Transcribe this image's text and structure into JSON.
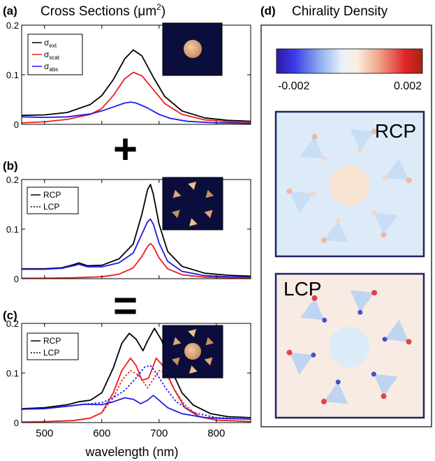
{
  "labels": {
    "panel_a": "(a)",
    "panel_b": "(b)",
    "panel_c": "(c)",
    "panel_d": "(d)",
    "cross_sections_title": "Cross Sections (μm",
    "cross_sections_sup": "2",
    "cross_sections_close": ")",
    "chirality_title": "Chirality Density",
    "plus_sign": "+",
    "equals_sign": "=",
    "xlabel": "wavelength (nm)",
    "rcp_map_label": "RCP",
    "lcp_map_label": "LCP",
    "colorbar_min": "-0.002",
    "colorbar_max": "0.002"
  },
  "colors": {
    "ext": "#000000",
    "scat": "#ee1c1c",
    "abs": "#1a1ae6",
    "inset_bg": "#0b0e3c",
    "particle": "#e8b38a",
    "rcp_bg": "#ddebf8",
    "lcp_bg": "#f7ebe4"
  },
  "chart_data": [
    {
      "panel": "(a)",
      "type": "line",
      "xlim": [
        460,
        860
      ],
      "ylim": [
        0,
        0.2
      ],
      "yticks": [
        "0",
        "0.1",
        "0.2"
      ],
      "legend": [
        "σext",
        "σscat",
        "σabs"
      ],
      "legend_position": "top-left",
      "series": [
        {
          "name": "σext",
          "color": "ext",
          "x": [
            460,
            500,
            540,
            580,
            600,
            620,
            640,
            655,
            670,
            690,
            710,
            740,
            780,
            820,
            860
          ],
          "y": [
            0.018,
            0.019,
            0.024,
            0.04,
            0.058,
            0.09,
            0.132,
            0.15,
            0.138,
            0.095,
            0.056,
            0.027,
            0.013,
            0.008,
            0.006
          ]
        },
        {
          "name": "σscat",
          "color": "scat",
          "x": [
            460,
            500,
            540,
            580,
            600,
            620,
            640,
            655,
            670,
            690,
            710,
            740,
            780,
            820,
            860
          ],
          "y": [
            0.003,
            0.005,
            0.01,
            0.02,
            0.032,
            0.058,
            0.092,
            0.105,
            0.098,
            0.07,
            0.042,
            0.02,
            0.009,
            0.005,
            0.003
          ]
        },
        {
          "name": "σabs",
          "color": "abs",
          "x": [
            460,
            500,
            540,
            580,
            600,
            620,
            640,
            650,
            660,
            680,
            700,
            720,
            750,
            800,
            860
          ],
          "y": [
            0.015,
            0.014,
            0.015,
            0.021,
            0.027,
            0.035,
            0.043,
            0.045,
            0.043,
            0.033,
            0.02,
            0.012,
            0.006,
            0.003,
            0.002
          ]
        }
      ]
    },
    {
      "panel": "(b)",
      "type": "line",
      "xlim": [
        460,
        860
      ],
      "ylim": [
        0,
        0.2
      ],
      "yticks": [
        "0",
        "0.1",
        "0.2"
      ],
      "legend": [
        "RCP",
        "LCP"
      ],
      "legend_position": "top-left",
      "series": [
        {
          "name": "ext",
          "color": "ext",
          "x": [
            460,
            500,
            530,
            550,
            560,
            575,
            600,
            630,
            655,
            670,
            680,
            685,
            690,
            700,
            715,
            740,
            780,
            820,
            860
          ],
          "y": [
            0.02,
            0.02,
            0.022,
            0.028,
            0.032,
            0.026,
            0.027,
            0.04,
            0.07,
            0.13,
            0.18,
            0.19,
            0.17,
            0.11,
            0.055,
            0.025,
            0.011,
            0.007,
            0.005
          ]
        },
        {
          "name": "abs",
          "color": "abs",
          "x": [
            460,
            500,
            530,
            550,
            560,
            575,
            600,
            630,
            655,
            670,
            680,
            685,
            690,
            700,
            715,
            740,
            780,
            820,
            860
          ],
          "y": [
            0.019,
            0.019,
            0.021,
            0.026,
            0.029,
            0.024,
            0.024,
            0.032,
            0.052,
            0.09,
            0.115,
            0.12,
            0.11,
            0.072,
            0.035,
            0.015,
            0.006,
            0.004,
            0.003
          ]
        },
        {
          "name": "scat",
          "color": "scat",
          "x": [
            460,
            500,
            550,
            600,
            630,
            655,
            670,
            680,
            685,
            690,
            700,
            715,
            740,
            780,
            860
          ],
          "y": [
            0.001,
            0.001,
            0.002,
            0.004,
            0.009,
            0.022,
            0.045,
            0.065,
            0.071,
            0.065,
            0.042,
            0.02,
            0.008,
            0.003,
            0.001
          ]
        }
      ]
    },
    {
      "panel": "(c)",
      "type": "line",
      "xlim": [
        460,
        860
      ],
      "ylim": [
        0,
        0.2
      ],
      "yticks": [
        "0",
        "0.1",
        "0.2"
      ],
      "legend": [
        "RCP",
        "LCP"
      ],
      "legend_position": "top-left",
      "series": [
        {
          "name": "ext",
          "color": "ext",
          "dash": false,
          "x": [
            460,
            500,
            540,
            560,
            580,
            600,
            620,
            635,
            648,
            660,
            672,
            680,
            692,
            705,
            720,
            740,
            760,
            790,
            820,
            860
          ],
          "y": [
            0.028,
            0.03,
            0.036,
            0.042,
            0.045,
            0.06,
            0.11,
            0.16,
            0.18,
            0.168,
            0.145,
            0.165,
            0.19,
            0.165,
            0.11,
            0.06,
            0.035,
            0.018,
            0.012,
            0.01
          ]
        },
        {
          "name": "scat",
          "color": "scat",
          "dash": false,
          "x": [
            460,
            500,
            550,
            580,
            600,
            620,
            635,
            650,
            660,
            670,
            682,
            695,
            710,
            725,
            745,
            770,
            800,
            860
          ],
          "y": [
            0.001,
            0.002,
            0.004,
            0.009,
            0.02,
            0.06,
            0.105,
            0.13,
            0.115,
            0.085,
            0.09,
            0.13,
            0.11,
            0.07,
            0.03,
            0.012,
            0.005,
            0.002
          ]
        },
        {
          "name": "scat LCP",
          "color": "scat",
          "dash": true,
          "x": [
            460,
            500,
            550,
            580,
            600,
            620,
            635,
            650,
            665,
            680,
            700,
            712,
            725,
            745,
            770,
            800,
            860
          ],
          "y": [
            0.001,
            0.002,
            0.004,
            0.009,
            0.02,
            0.05,
            0.085,
            0.105,
            0.095,
            0.07,
            0.105,
            0.1,
            0.07,
            0.035,
            0.013,
            0.005,
            0.002
          ]
        },
        {
          "name": "abs",
          "color": "abs",
          "dash": false,
          "x": [
            460,
            500,
            540,
            570,
            600,
            620,
            640,
            655,
            668,
            680,
            690,
            700,
            715,
            740,
            780,
            820,
            860
          ],
          "y": [
            0.027,
            0.028,
            0.033,
            0.037,
            0.036,
            0.042,
            0.05,
            0.047,
            0.038,
            0.045,
            0.055,
            0.045,
            0.03,
            0.018,
            0.01,
            0.008,
            0.007
          ]
        },
        {
          "name": "abs LCP",
          "color": "abs",
          "dash": true,
          "x": [
            460,
            500,
            540,
            570,
            600,
            620,
            640,
            660,
            675,
            685,
            695,
            710,
            730,
            760,
            800,
            860
          ],
          "y": [
            0.027,
            0.028,
            0.033,
            0.037,
            0.04,
            0.05,
            0.065,
            0.09,
            0.112,
            0.115,
            0.1,
            0.072,
            0.042,
            0.02,
            0.01,
            0.007
          ]
        }
      ]
    }
  ],
  "shared_x_ticks": [
    500,
    600,
    700,
    800
  ]
}
